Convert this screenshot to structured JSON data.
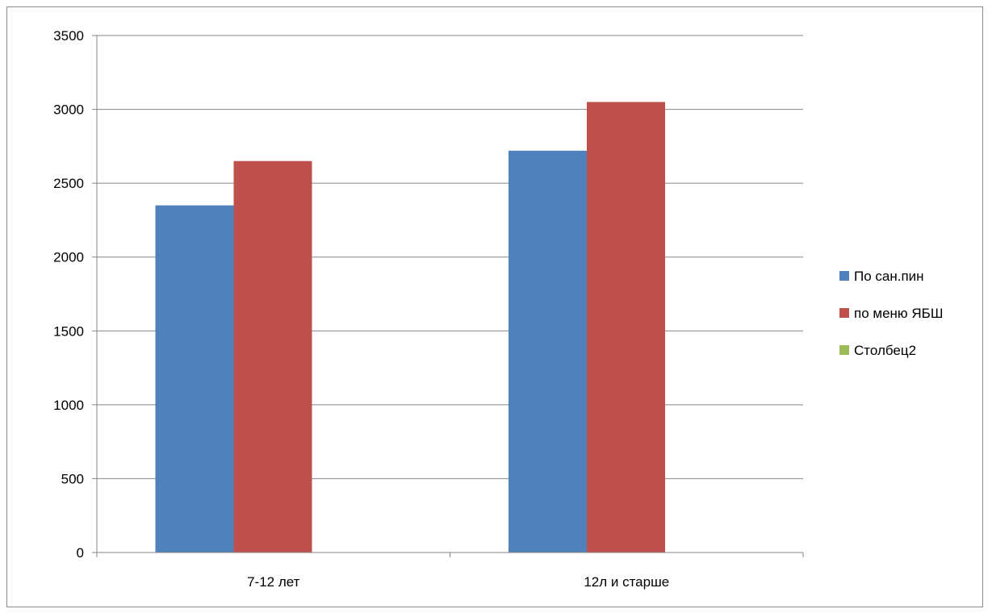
{
  "chart_data": {
    "type": "bar",
    "categories": [
      "7-12 лет",
      "12л и старше"
    ],
    "series": [
      {
        "name": "По сан.пин",
        "values": [
          2350,
          2720
        ],
        "color": "#4f81bd"
      },
      {
        "name": "по меню ЯБШ",
        "values": [
          2650,
          3050
        ],
        "color": "#c0504d"
      },
      {
        "name": "Столбец2",
        "values": [
          0,
          0
        ],
        "color": "#9bbb59"
      }
    ],
    "ylim": [
      0,
      3500
    ],
    "yticks": [
      0,
      500,
      1000,
      1500,
      2000,
      2500,
      3000,
      3500
    ],
    "grid": true,
    "legend_position": "right",
    "gridline_color": "#868686"
  }
}
